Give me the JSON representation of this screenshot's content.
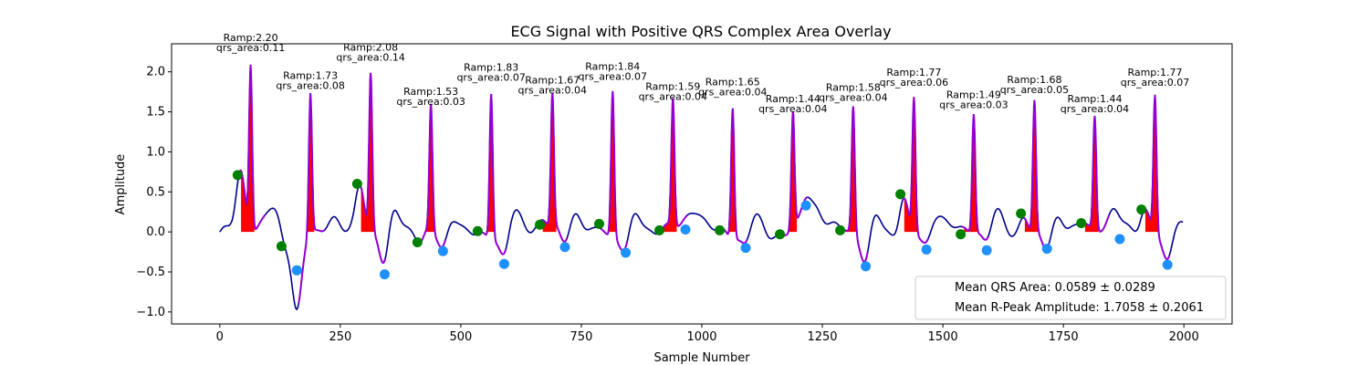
{
  "chart_data": {
    "type": "line",
    "title": "ECG Signal with Positive QRS Complex Area Overlay",
    "xlabel": "Sample Number",
    "ylabel": "Amplitude",
    "xlim": [
      -100,
      2100
    ],
    "ylim": [
      -1.15,
      2.35
    ],
    "xticks": [
      0,
      250,
      500,
      750,
      1000,
      1250,
      1500,
      1750,
      2000
    ],
    "yticks": [
      -1.0,
      -0.5,
      0.0,
      0.5,
      1.0,
      1.5,
      2.0
    ],
    "ytick_labels": [
      "−1.0",
      "−0.5",
      "0.0",
      "0.5",
      "1.0",
      "1.5",
      "2.0"
    ],
    "grid": false,
    "colors": {
      "signal": "#00008b",
      "qrs_segment": "#9400d3",
      "area_fill": "#ff0000",
      "q_marker": "#008000",
      "s_marker": "#1e90ff"
    },
    "beats": [
      {
        "q_x": 37,
        "q_y": 0.71,
        "r_x": 64,
        "r_amp": 2.2,
        "s_x": 160,
        "s_y": -0.48,
        "t_x": 250,
        "t_y": 0.28,
        "qrs_area": 0.11,
        "label_ramp": "Ramp:2.20",
        "label_area": "qrs_area:0.11"
      },
      {
        "q_x": 128,
        "q_y": -0.18,
        "r_x": 188,
        "r_amp": 1.73,
        "s_x": 160,
        "s_y": -0.48,
        "t_x": 250,
        "t_y": 0.28,
        "qrs_area": 0.08,
        "label_ramp": "Ramp:1.73",
        "label_area": "qrs_area:0.08"
      },
      {
        "q_x": 285,
        "q_y": 0.6,
        "r_x": 313,
        "r_amp": 2.08,
        "s_x": 342,
        "s_y": -0.53,
        "t_x": 342,
        "t_y": -0.53,
        "qrs_area": 0.14,
        "label_ramp": "Ramp:2.08",
        "label_area": "qrs_area:0.14"
      },
      {
        "q_x": 410,
        "q_y": -0.13,
        "r_x": 438,
        "r_amp": 1.53,
        "s_x": 463,
        "s_y": -0.24,
        "t_x": 463,
        "t_y": -0.24,
        "qrs_area": 0.03,
        "label_ramp": "Ramp:1.53",
        "label_area": "qrs_area:0.03"
      },
      {
        "q_x": 535,
        "q_y": 0.01,
        "r_x": 563,
        "r_amp": 1.83,
        "s_x": 590,
        "s_y": -0.4,
        "t_x": 590,
        "t_y": -0.4,
        "qrs_area": 0.07,
        "label_ramp": "Ramp:1.83",
        "label_area": "qrs_area:0.07"
      },
      {
        "q_x": 664,
        "q_y": 0.09,
        "r_x": 690,
        "r_amp": 1.67,
        "s_x": 716,
        "s_y": -0.19,
        "t_x": 716,
        "t_y": -0.19,
        "qrs_area": 0.04,
        "label_ramp": "Ramp:1.67",
        "label_area": "qrs_area:0.04"
      },
      {
        "q_x": 787,
        "q_y": 0.1,
        "r_x": 815,
        "r_amp": 1.84,
        "s_x": 842,
        "s_y": -0.26,
        "t_x": 842,
        "t_y": -0.26,
        "qrs_area": 0.07,
        "label_ramp": "Ramp:1.84",
        "label_area": "qrs_area:0.07"
      },
      {
        "q_x": 912,
        "q_y": 0.02,
        "r_x": 940,
        "r_amp": 1.59,
        "s_x": 966,
        "s_y": 0.03,
        "t_x": 966,
        "t_y": 0.03,
        "qrs_area": 0.04,
        "label_ramp": "Ramp:1.59",
        "label_area": "qrs_area:0.04"
      },
      {
        "q_x": 1037,
        "q_y": 0.02,
        "r_x": 1064,
        "r_amp": 1.65,
        "s_x": 1091,
        "s_y": -0.2,
        "t_x": 1091,
        "t_y": -0.2,
        "qrs_area": 0.04,
        "label_ramp": "Ramp:1.65",
        "label_area": "qrs_area:0.04"
      },
      {
        "q_x": 1162,
        "q_y": -0.03,
        "r_x": 1189,
        "r_amp": 1.44,
        "s_x": 1216,
        "s_y": 0.33,
        "t_x": 1216,
        "t_y": 0.33,
        "qrs_area": 0.04,
        "label_ramp": "Ramp:1.44",
        "label_area": "qrs_area:0.04"
      },
      {
        "q_x": 1287,
        "q_y": 0.02,
        "r_x": 1314,
        "r_amp": 1.58,
        "s_x": 1340,
        "s_y": -0.43,
        "t_x": 1340,
        "t_y": -0.43,
        "qrs_area": 0.04,
        "label_ramp": "Ramp:1.58",
        "label_area": "qrs_area:0.04"
      },
      {
        "q_x": 1412,
        "q_y": 0.47,
        "r_x": 1440,
        "r_amp": 1.77,
        "s_x": 1466,
        "s_y": -0.22,
        "t_x": 1466,
        "t_y": -0.22,
        "qrs_area": 0.06,
        "label_ramp": "Ramp:1.77",
        "label_area": "qrs_area:0.06"
      },
      {
        "q_x": 1537,
        "q_y": -0.03,
        "r_x": 1564,
        "r_amp": 1.49,
        "s_x": 1591,
        "s_y": -0.23,
        "t_x": 1591,
        "t_y": -0.23,
        "qrs_area": 0.03,
        "label_ramp": "Ramp:1.49",
        "label_area": "qrs_area:0.03"
      },
      {
        "q_x": 1662,
        "q_y": 0.23,
        "r_x": 1690,
        "r_amp": 1.68,
        "s_x": 1716,
        "s_y": -0.21,
        "t_x": 1716,
        "t_y": -0.21,
        "qrs_area": 0.05,
        "label_ramp": "Ramp:1.68",
        "label_area": "qrs_area:0.05"
      },
      {
        "q_x": 1787,
        "q_y": 0.11,
        "r_x": 1815,
        "r_amp": 1.44,
        "s_x": 1867,
        "s_y": -0.09,
        "t_x": 1867,
        "t_y": -0.09,
        "qrs_area": 0.04,
        "label_ramp": "Ramp:1.44",
        "label_area": "qrs_area:0.04"
      },
      {
        "q_x": 1912,
        "q_y": 0.28,
        "r_x": 1940,
        "r_amp": 1.77,
        "s_x": 1966,
        "s_y": -0.41,
        "t_x": 1966,
        "t_y": -0.41,
        "qrs_area": 0.07,
        "label_ramp": "Ramp:1.77",
        "label_area": "qrs_area:0.07"
      }
    ],
    "legend": {
      "placement": "lower-right",
      "entries": [
        "Mean QRS Area: 0.0589 ± 0.0289",
        "Mean R-Peak Amplitude: 1.7058 ± 0.2061"
      ]
    }
  }
}
